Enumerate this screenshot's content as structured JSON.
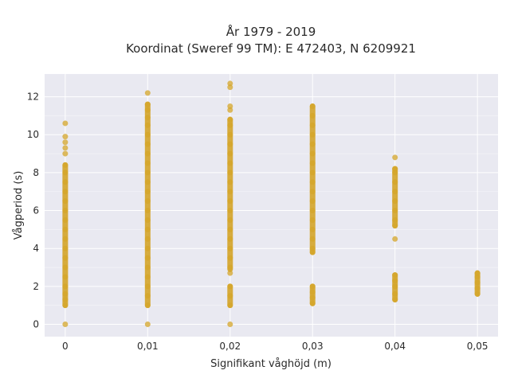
{
  "chart_data": {
    "type": "scatter",
    "title_line1": "År 1979 - 2019",
    "title_line2": "Koordinat (Sweref 99 TM): E 472403, N 6209921",
    "xlabel": "Signifikant våghöjd (m)",
    "ylabel": "Vågperiod (s)",
    "xlim": [
      -0.0025,
      0.0525
    ],
    "ylim": [
      -0.65,
      13.2
    ],
    "x_ticks": [
      0,
      0.01,
      0.02,
      0.03,
      0.04,
      0.05
    ],
    "x_tick_labels": [
      "0",
      "0,01",
      "0,02",
      "0,03",
      "0,04",
      "0,05"
    ],
    "y_ticks": [
      0,
      2,
      4,
      6,
      8,
      10,
      12
    ],
    "y_tick_labels": [
      "0",
      "2",
      "4",
      "6",
      "8",
      "10",
      "12"
    ],
    "grid": true,
    "marker_color": "#D4A52A",
    "plot_background": "#E9E9F1",
    "series": [
      {
        "values_note_free": true,
        "points": [
          {
            "x": 0,
            "y": 0.0
          },
          {
            "x": 0,
            "y": 1.0
          },
          {
            "x": 0,
            "y": 1.3
          },
          {
            "x": 0,
            "y": 1.6
          },
          {
            "x": 0,
            "y": 2.0
          },
          {
            "x": 0,
            "y": 2.5
          },
          {
            "x": 0,
            "y": 3.0
          },
          {
            "x": 0,
            "y": 3.5
          },
          {
            "x": 0,
            "y": 4.0
          },
          {
            "x": 0,
            "y": 4.5
          },
          {
            "x": 0,
            "y": 5.0
          },
          {
            "x": 0,
            "y": 5.5
          },
          {
            "x": 0,
            "y": 6.0
          },
          {
            "x": 0,
            "y": 6.5
          },
          {
            "x": 0,
            "y": 7.0
          },
          {
            "x": 0,
            "y": 7.5
          },
          {
            "x": 0,
            "y": 8.0
          },
          {
            "x": 0,
            "y": 8.4
          },
          {
            "x": 0,
            "y": 9.0
          },
          {
            "x": 0,
            "y": 9.3
          },
          {
            "x": 0,
            "y": 9.6
          },
          {
            "x": 0,
            "y": 9.9
          },
          {
            "x": 0,
            "y": 10.6
          },
          {
            "x": 0.01,
            "y": 0.0
          },
          {
            "x": 0.01,
            "y": 1.0
          },
          {
            "x": 0.01,
            "y": 1.5
          },
          {
            "x": 0.01,
            "y": 2.0
          },
          {
            "x": 0.01,
            "y": 2.5
          },
          {
            "x": 0.01,
            "y": 3.0
          },
          {
            "x": 0.01,
            "y": 3.5
          },
          {
            "x": 0.01,
            "y": 4.0
          },
          {
            "x": 0.01,
            "y": 4.5
          },
          {
            "x": 0.01,
            "y": 5.0
          },
          {
            "x": 0.01,
            "y": 5.5
          },
          {
            "x": 0.01,
            "y": 6.0
          },
          {
            "x": 0.01,
            "y": 6.5
          },
          {
            "x": 0.01,
            "y": 7.0
          },
          {
            "x": 0.01,
            "y": 7.5
          },
          {
            "x": 0.01,
            "y": 8.0
          },
          {
            "x": 0.01,
            "y": 8.5
          },
          {
            "x": 0.01,
            "y": 9.0
          },
          {
            "x": 0.01,
            "y": 9.5
          },
          {
            "x": 0.01,
            "y": 10.0
          },
          {
            "x": 0.01,
            "y": 10.5
          },
          {
            "x": 0.01,
            "y": 10.9
          },
          {
            "x": 0.01,
            "y": 11.3
          },
          {
            "x": 0.01,
            "y": 11.6
          },
          {
            "x": 0.01,
            "y": 12.2
          },
          {
            "x": 0.02,
            "y": 0.0
          },
          {
            "x": 0.02,
            "y": 1.0
          },
          {
            "x": 0.02,
            "y": 1.5
          },
          {
            "x": 0.02,
            "y": 2.0
          },
          {
            "x": 0.02,
            "y": 2.7
          },
          {
            "x": 0.02,
            "y": 3.0
          },
          {
            "x": 0.02,
            "y": 3.5
          },
          {
            "x": 0.02,
            "y": 4.0
          },
          {
            "x": 0.02,
            "y": 4.5
          },
          {
            "x": 0.02,
            "y": 5.0
          },
          {
            "x": 0.02,
            "y": 5.5
          },
          {
            "x": 0.02,
            "y": 6.0
          },
          {
            "x": 0.02,
            "y": 6.5
          },
          {
            "x": 0.02,
            "y": 7.0
          },
          {
            "x": 0.02,
            "y": 7.5
          },
          {
            "x": 0.02,
            "y": 8.0
          },
          {
            "x": 0.02,
            "y": 8.5
          },
          {
            "x": 0.02,
            "y": 9.0
          },
          {
            "x": 0.02,
            "y": 9.5
          },
          {
            "x": 0.02,
            "y": 10.0
          },
          {
            "x": 0.02,
            "y": 10.5
          },
          {
            "x": 0.02,
            "y": 10.8
          },
          {
            "x": 0.02,
            "y": 11.3
          },
          {
            "x": 0.02,
            "y": 11.5
          },
          {
            "x": 0.02,
            "y": 12.5
          },
          {
            "x": 0.02,
            "y": 12.7
          },
          {
            "x": 0.03,
            "y": 1.1
          },
          {
            "x": 0.03,
            "y": 1.4
          },
          {
            "x": 0.03,
            "y": 1.7
          },
          {
            "x": 0.03,
            "y": 2.0
          },
          {
            "x": 0.03,
            "y": 3.8
          },
          {
            "x": 0.03,
            "y": 4.0
          },
          {
            "x": 0.03,
            "y": 4.5
          },
          {
            "x": 0.03,
            "y": 5.0
          },
          {
            "x": 0.03,
            "y": 5.5
          },
          {
            "x": 0.03,
            "y": 6.0
          },
          {
            "x": 0.03,
            "y": 6.5
          },
          {
            "x": 0.03,
            "y": 7.0
          },
          {
            "x": 0.03,
            "y": 7.5
          },
          {
            "x": 0.03,
            "y": 8.0
          },
          {
            "x": 0.03,
            "y": 8.5
          },
          {
            "x": 0.03,
            "y": 9.0
          },
          {
            "x": 0.03,
            "y": 9.5
          },
          {
            "x": 0.03,
            "y": 10.0
          },
          {
            "x": 0.03,
            "y": 10.5
          },
          {
            "x": 0.03,
            "y": 11.0
          },
          {
            "x": 0.03,
            "y": 11.5
          },
          {
            "x": 0.04,
            "y": 1.3
          },
          {
            "x": 0.04,
            "y": 1.6
          },
          {
            "x": 0.04,
            "y": 2.0
          },
          {
            "x": 0.04,
            "y": 2.3
          },
          {
            "x": 0.04,
            "y": 2.6
          },
          {
            "x": 0.04,
            "y": 4.5
          },
          {
            "x": 0.04,
            "y": 5.2
          },
          {
            "x": 0.04,
            "y": 5.5
          },
          {
            "x": 0.04,
            "y": 6.0
          },
          {
            "x": 0.04,
            "y": 6.5
          },
          {
            "x": 0.04,
            "y": 7.0
          },
          {
            "x": 0.04,
            "y": 7.5
          },
          {
            "x": 0.04,
            "y": 8.0
          },
          {
            "x": 0.04,
            "y": 8.2
          },
          {
            "x": 0.04,
            "y": 8.8
          },
          {
            "x": 0.05,
            "y": 1.6
          },
          {
            "x": 0.05,
            "y": 1.9
          },
          {
            "x": 0.05,
            "y": 2.2
          },
          {
            "x": 0.05,
            "y": 2.5
          },
          {
            "x": 0.05,
            "y": 2.7
          }
        ],
        "ranges": [
          {
            "x": 0,
            "from": 1.0,
            "to": 8.4
          },
          {
            "x": 0.01,
            "from": 1.0,
            "to": 11.6
          },
          {
            "x": 0.02,
            "from": 2.9,
            "to": 10.8
          },
          {
            "x": 0.02,
            "from": 1.0,
            "to": 2.0
          },
          {
            "x": 0.03,
            "from": 3.8,
            "to": 11.5
          },
          {
            "x": 0.03,
            "from": 1.1,
            "to": 2.0
          },
          {
            "x": 0.04,
            "from": 5.2,
            "to": 8.2
          },
          {
            "x": 0.04,
            "from": 1.3,
            "to": 2.6
          },
          {
            "x": 0.05,
            "from": 1.6,
            "to": 2.7
          }
        ]
      }
    ]
  }
}
